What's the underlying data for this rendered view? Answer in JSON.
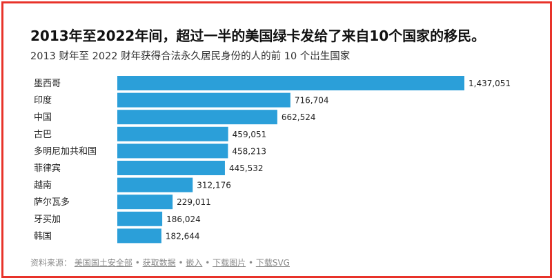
{
  "title": "2013年至2022年间，超过一半的美国绿卡发给了来自10个国家的移民。",
  "subtitle": "2013 财年至 2022 财年获得合法永久居民身份的人的前 10 个出生国家",
  "footer": {
    "prefix": "资料来源：",
    "source": "美国国土安全部",
    "sep": "•",
    "links": [
      "获取数据",
      "嵌入",
      "下载图片",
      "下载SVG"
    ]
  },
  "colors": {
    "bar": "#2b9fd9",
    "frame": "#e8332a"
  },
  "chart_data": {
    "type": "bar",
    "orientation": "horizontal",
    "categories": [
      "墨西哥",
      "印度",
      "中国",
      "古巴",
      "多明尼加共和国",
      "菲律宾",
      "越南",
      "萨尔瓦多",
      "牙买加",
      "韩国"
    ],
    "values": [
      1437051,
      716704,
      662524,
      459051,
      458213,
      445532,
      312176,
      229011,
      186024,
      182644
    ],
    "value_labels": [
      "1,437,051",
      "716,704",
      "662,524",
      "459,051",
      "458,213",
      "445,532",
      "312,176",
      "229,011",
      "186,024",
      "182,644"
    ],
    "xlim": [
      0,
      1437051
    ],
    "grid": false,
    "legend": "none"
  }
}
